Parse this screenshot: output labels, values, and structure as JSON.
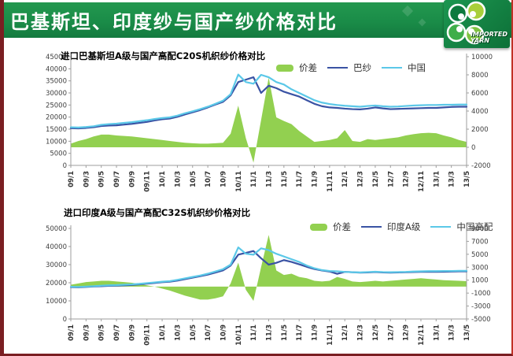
{
  "header": {
    "title": "巴基斯坦、印度纱与国产纱价格对比",
    "logo_line1": "IMPORTED",
    "logo_line2": "YARN"
  },
  "colors": {
    "spread_green": "#92D050",
    "line_dark_blue": "#3A53A4",
    "line_light_blue": "#5BC8E8",
    "header_green": "#1a8c48",
    "border_maroon": "#7a1e22"
  },
  "chart_data": [
    {
      "type": "area",
      "title": "进口巴基斯坦A级与国产高配C20S机织纱价格对比",
      "legend_position": "top-right",
      "grid": false,
      "x_ticklabels": [
        "09/1",
        "09/3",
        "09/5",
        "09/7",
        "09/9",
        "09/11",
        "10/1",
        "10/3",
        "10/5",
        "10/7",
        "10/9",
        "10/11",
        "11/1",
        "11/3",
        "11/5",
        "11/7",
        "11/9",
        "11/11",
        "12/1",
        "12/3",
        "12/5",
        "12/7",
        "12/9",
        "12/11",
        "13/1",
        "13/3",
        "13/5"
      ],
      "left_axis": {
        "min": 0,
        "max": 45000,
        "step": 5000
      },
      "right_axis": {
        "min": -2000,
        "max": 10000,
        "step": 2000
      },
      "area_series": {
        "name": "价差",
        "axis": "right",
        "color": "#92D050",
        "values": [
          400,
          700,
          900,
          1200,
          1400,
          1400,
          1300,
          1250,
          1200,
          1100,
          1000,
          900,
          800,
          700,
          600,
          500,
          450,
          400,
          400,
          450,
          500,
          1500,
          4600,
          1000,
          -1700,
          3000,
          7700,
          3300,
          2900,
          2550,
          1800,
          1200,
          600,
          700,
          800,
          1000,
          1900,
          700,
          600,
          900,
          800,
          900,
          1000,
          1100,
          1300,
          1450,
          1550,
          1600,
          1550,
          1300,
          1100,
          800,
          600
        ]
      },
      "series": [
        {
          "name": "巴纱",
          "axis": "left",
          "color": "#3A53A4",
          "values": [
            15400,
            15300,
            15500,
            15800,
            16300,
            16500,
            16600,
            16900,
            17200,
            17600,
            18000,
            18600,
            19100,
            19400,
            20100,
            21100,
            22000,
            22900,
            24000,
            25200,
            26300,
            29000,
            34500,
            35500,
            36500,
            30000,
            33000,
            32000,
            30500,
            29500,
            28500,
            27000,
            25500,
            24500,
            24000,
            23800,
            23500,
            23300,
            23200,
            23500,
            24000,
            23600,
            23300,
            23400,
            23500,
            23600,
            23700,
            23800,
            23800,
            24000,
            24200,
            24300,
            24300
          ]
        },
        {
          "name": "中国",
          "axis": "left",
          "color": "#5BC8E8",
          "values": [
            15800,
            15700,
            15900,
            16200,
            16800,
            17100,
            17300,
            17600,
            17900,
            18300,
            18700,
            19200,
            19600,
            19900,
            20600,
            21600,
            22400,
            23300,
            24300,
            25500,
            26800,
            29500,
            37600,
            34500,
            33800,
            37500,
            36500,
            34500,
            33500,
            31500,
            30000,
            28500,
            27000,
            26000,
            25400,
            25000,
            24700,
            24500,
            24300,
            24600,
            24800,
            24500,
            24300,
            24400,
            24600,
            24800,
            24900,
            25000,
            25000,
            25100,
            25100,
            25200,
            25200
          ]
        }
      ]
    },
    {
      "type": "area",
      "title": "进口印度A级与国产高配C32S机织纱价格对比",
      "legend_position": "top-right",
      "grid": false,
      "x_ticklabels": [
        "09/1",
        "09/3",
        "09/5",
        "09/7",
        "09/9",
        "09/11",
        "10/1",
        "10/3",
        "10/5",
        "10/7",
        "10/9",
        "10/11",
        "11/1",
        "11/3",
        "11/5",
        "11/7",
        "11/9",
        "11/11",
        "12/1",
        "12/3",
        "12/5",
        "12/7",
        "12/9",
        "12/11",
        "13/1",
        "13/3",
        "13/5"
      ],
      "left_axis": {
        "min": 0,
        "max": 50000,
        "step": 10000
      },
      "right_axis": {
        "min": -5000,
        "max": 9000,
        "step": 2000
      },
      "area_series": {
        "name": "价差",
        "axis": "right",
        "color": "#92D050",
        "values": [
          300,
          500,
          700,
          800,
          900,
          900,
          800,
          700,
          600,
          400,
          200,
          0,
          -300,
          -600,
          -1000,
          -1400,
          -1700,
          -2000,
          -2000,
          -1800,
          -1500,
          500,
          3700,
          -500,
          -2200,
          3000,
          8000,
          2500,
          1800,
          2000,
          1500,
          1300,
          900,
          800,
          900,
          1500,
          1200,
          800,
          700,
          800,
          900,
          800,
          900,
          1000,
          1100,
          1200,
          1300,
          1200,
          1100,
          1000,
          950,
          900,
          850
        ]
      },
      "series": [
        {
          "name": "印度A级",
          "axis": "left",
          "color": "#3A53A4",
          "values": [
            17600,
            17500,
            17700,
            17900,
            18100,
            18300,
            18400,
            18600,
            18800,
            19100,
            19500,
            19900,
            20300,
            20600,
            21200,
            22000,
            22800,
            23600,
            24500,
            25600,
            26800,
            29500,
            35500,
            36500,
            37500,
            33500,
            30000,
            31000,
            32500,
            31500,
            30200,
            28800,
            27600,
            26800,
            26200,
            24900,
            26000,
            25800,
            25600,
            25700,
            25900,
            25700,
            25600,
            25700,
            25800,
            25900,
            26000,
            26000,
            26000,
            26100,
            26200,
            26300,
            26300
          ]
        },
        {
          "name": "中国高配",
          "axis": "left",
          "color": "#5BC8E8",
          "values": [
            17800,
            17700,
            17900,
            18100,
            18400,
            18600,
            18700,
            18900,
            19100,
            19400,
            19800,
            20200,
            20600,
            20900,
            21600,
            22400,
            23200,
            24000,
            25000,
            26200,
            27500,
            30000,
            39500,
            36000,
            35500,
            39000,
            38000,
            36000,
            34500,
            33000,
            31500,
            29500,
            28000,
            27000,
            26500,
            26300,
            26000,
            25800,
            25700,
            25900,
            26100,
            25900,
            25800,
            25900,
            26000,
            26200,
            26300,
            26400,
            26400,
            26500,
            26500,
            26600,
            26600
          ]
        }
      ]
    }
  ]
}
